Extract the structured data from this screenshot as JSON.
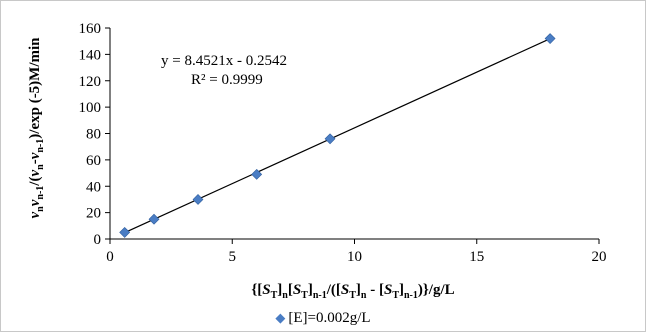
{
  "chart_data": {
    "type": "scatter",
    "x": [
      0.6,
      1.8,
      3.6,
      6.0,
      9.0,
      18.0
    ],
    "series": [
      {
        "name": "[E]=0.002g/L",
        "values": [
          5,
          15,
          30,
          49,
          76,
          152
        ],
        "color": "#4a7dc4",
        "marker": "diamond"
      }
    ],
    "trendline": {
      "type": "linear",
      "slope": 8.4521,
      "intercept": -0.2542,
      "equation_label": "y = 8.4521x - 0.2542",
      "r2_label": "R² = 0.9999",
      "color": "#000000"
    },
    "xlim": [
      0,
      20
    ],
    "ylim": [
      0,
      160
    ],
    "x_ticks": [
      0,
      5,
      10,
      15,
      20
    ],
    "y_ticks": [
      0,
      20,
      40,
      60,
      80,
      100,
      120,
      140,
      160
    ],
    "grid": false,
    "legend_position": "bottom",
    "xlabel": "{[ST]n[ST]n-1/([ST]n - [ST]n-1)}/g/L",
    "ylabel": "vnvn-1/(vn-vn-1)/exp (-5)M/min",
    "xlabel_parts": {
      "open": "{[",
      "s1": "S",
      "t1": "T",
      "c1": "]",
      "n1": "n",
      "b2": "[",
      "s2": "S",
      "t2": "T",
      "c2": "]",
      "n2": "n-1",
      "mid": "/([",
      "s3": "S",
      "t3": "T",
      "c3": "]",
      "n3": "n",
      "minus": " - [",
      "s4": "S",
      "t4": "T",
      "c4": "]",
      "n4": "n-1",
      "tail": ")}/g/L"
    },
    "ylabel_parts": {
      "v1": "v",
      "s1": "n",
      "v2": "v",
      "s2": "n-1",
      "mid": "/(",
      "v3": "v",
      "s3": "n",
      "dash": "-",
      "v4": "v",
      "s4": "n-1",
      "tail": ")/exp (-5)M/min"
    }
  }
}
